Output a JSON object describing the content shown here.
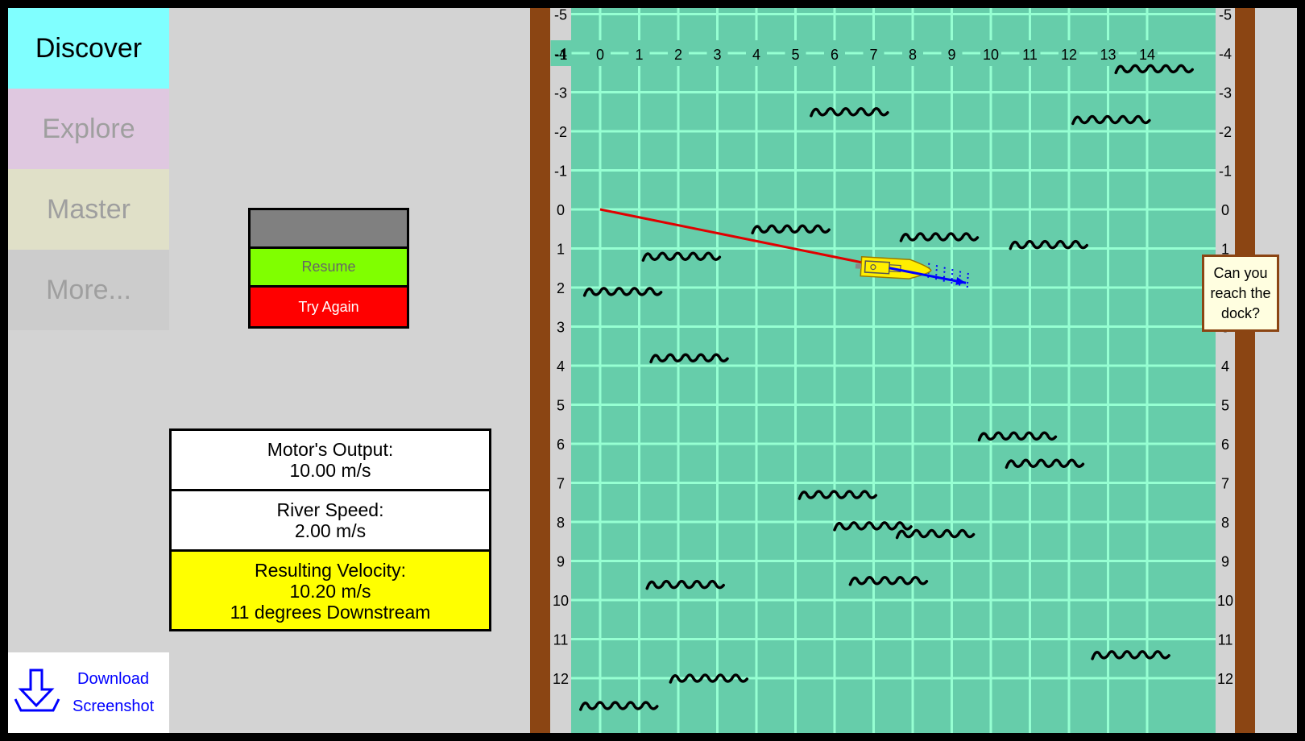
{
  "nav": {
    "discover": "Discover",
    "explore": "Explore",
    "master": "Master",
    "more": "More..."
  },
  "controls": {
    "resume": "Resume",
    "try_again": "Try Again"
  },
  "readouts": {
    "motor_label": "Motor's Output:",
    "motor_value": "10.00 m/s",
    "river_label": "River Speed:",
    "river_value": "2.00 m/s",
    "result_label": "Resulting Velocity:",
    "result_value": "10.20 m/s",
    "result_direction": "11 degrees Downstream"
  },
  "download": {
    "line1": "Download",
    "line2": "Screenshot"
  },
  "dock_prompt": {
    "line1": "Can you",
    "line2": "reach the",
    "line3": "dock?"
  },
  "grid": {
    "x_ticks": [
      "-1",
      "0",
      "1",
      "2",
      "3",
      "4",
      "5",
      "6",
      "7",
      "8",
      "9",
      "10",
      "11",
      "12",
      "13",
      "14"
    ],
    "y_ticks": [
      "-5",
      "-4",
      "-3",
      "-2",
      "-1",
      "0",
      "1",
      "2",
      "3",
      "4",
      "5",
      "6",
      "7",
      "8",
      "9",
      "10",
      "11",
      "12"
    ]
  },
  "boat": {
    "x": 7.4,
    "y": 1.5,
    "motor_speed": 10.0,
    "river_speed": 2.0,
    "resulting_speed": 10.2,
    "angle_degrees_downstream": 11
  },
  "path": {
    "start": [
      0,
      0
    ],
    "end": [
      7.4,
      1.5
    ]
  },
  "waves": [
    [
      5.4,
      -2.5
    ],
    [
      12.1,
      -2.3
    ],
    [
      13.2,
      -3.6
    ],
    [
      3.9,
      0.5
    ],
    [
      7.7,
      0.7
    ],
    [
      10.5,
      0.9
    ],
    [
      1.1,
      1.2
    ],
    [
      -0.4,
      2.1
    ],
    [
      1.3,
      3.8
    ],
    [
      9.7,
      5.8
    ],
    [
      10.4,
      6.5
    ],
    [
      5.1,
      7.3
    ],
    [
      6.0,
      8.1
    ],
    [
      7.6,
      8.3
    ],
    [
      1.2,
      9.6
    ],
    [
      6.4,
      9.5
    ],
    [
      12.6,
      11.4
    ],
    [
      1.8,
      12.0
    ],
    [
      -0.5,
      12.7
    ]
  ],
  "colors": {
    "water": "#66cdaa",
    "grid": "#96ffd2",
    "bank": "#8b4513",
    "path": "#e00000",
    "velocity_arrow": "#0000ff",
    "boat": "#ffee00"
  }
}
